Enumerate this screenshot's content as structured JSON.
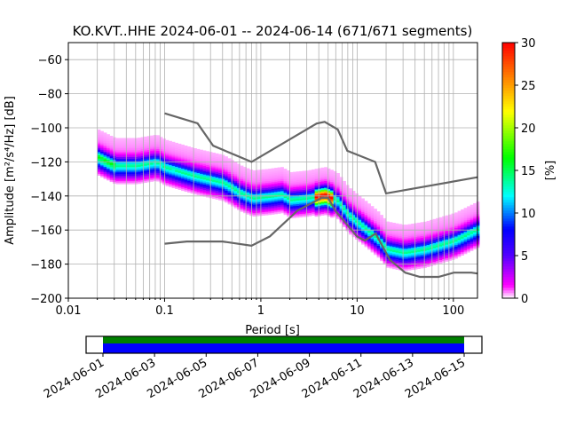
{
  "chart_data": {
    "type": "heatmap",
    "title": "KO.KVT..HHE   2024-06-01 -- 2024-06-14  (671/671 segments)",
    "xlabel": "Period [s]",
    "ylabel": "Amplitude [m²/s⁴/Hz] [dB]",
    "xscale": "log",
    "xlim": [
      0.01,
      178
    ],
    "ylim": [
      -200,
      -50
    ],
    "xticks": [
      0.01,
      0.1,
      1,
      10,
      100
    ],
    "xtick_labels": [
      "0.01",
      "0.1",
      "1",
      "10",
      "100"
    ],
    "yticks": [
      -200,
      -180,
      -160,
      -140,
      -120,
      -100,
      -80,
      -60
    ],
    "ytick_labels": [
      "−200",
      "−180",
      "−160",
      "−140",
      "−120",
      "−100",
      "−80",
      "−60"
    ],
    "grid": true,
    "colorbar": {
      "label": "[%]",
      "range": [
        0,
        30
      ],
      "ticks": [
        0,
        5,
        10,
        15,
        20,
        25,
        30
      ],
      "tick_labels": [
        "0",
        "5",
        "10",
        "15",
        "20",
        "25",
        "30"
      ]
    },
    "mode_curve": {
      "period": [
        0.02,
        0.03,
        0.05,
        0.08,
        0.1,
        0.2,
        0.4,
        0.6,
        0.8,
        1.2,
        1.6,
        2,
        3,
        4.5,
        6,
        8,
        12,
        16,
        20,
        30,
        50,
        100,
        178
      ],
      "db": [
        -118,
        -123,
        -123,
        -121,
        -124,
        -129,
        -133,
        -139,
        -142,
        -141,
        -140,
        -143,
        -142,
        -140,
        -143,
        -152,
        -160,
        -166,
        -172,
        -174,
        -172,
        -167,
        -160
      ]
    },
    "nhnm": {
      "period": [
        0.1,
        0.22,
        0.32,
        0.8,
        3.8,
        4.6,
        6.3,
        7.9,
        15.4,
        20,
        178
      ],
      "db": [
        -91.5,
        -97.4,
        -110.5,
        -120,
        -97.5,
        -96.5,
        -101,
        -113.5,
        -120,
        -138.5,
        -129
      ]
    },
    "nlnm": {
      "period": [
        0.1,
        0.17,
        0.4,
        0.8,
        1.24,
        2.4,
        4.3,
        5,
        6,
        10,
        12,
        15.6,
        21.9,
        31.6,
        45,
        70,
        101,
        154,
        178
      ],
      "db": [
        -168,
        -166.7,
        -166.7,
        -169.2,
        -163.7,
        -148.6,
        -141.1,
        -141.1,
        -149,
        -163.8,
        -166.2,
        -162.1,
        -177.5,
        -185,
        -187.5,
        -187.5,
        -185,
        -185,
        -185.5
      ]
    },
    "line_color": "#666666",
    "timeline": {
      "ticks": [
        "2024-06-01",
        "2024-06-03",
        "2024-06-05",
        "2024-06-07",
        "2024-06-09",
        "2024-06-11",
        "2024-06-13",
        "2024-06-15"
      ],
      "coverage_color": "#008000",
      "segments_color": "#0000ff"
    }
  }
}
